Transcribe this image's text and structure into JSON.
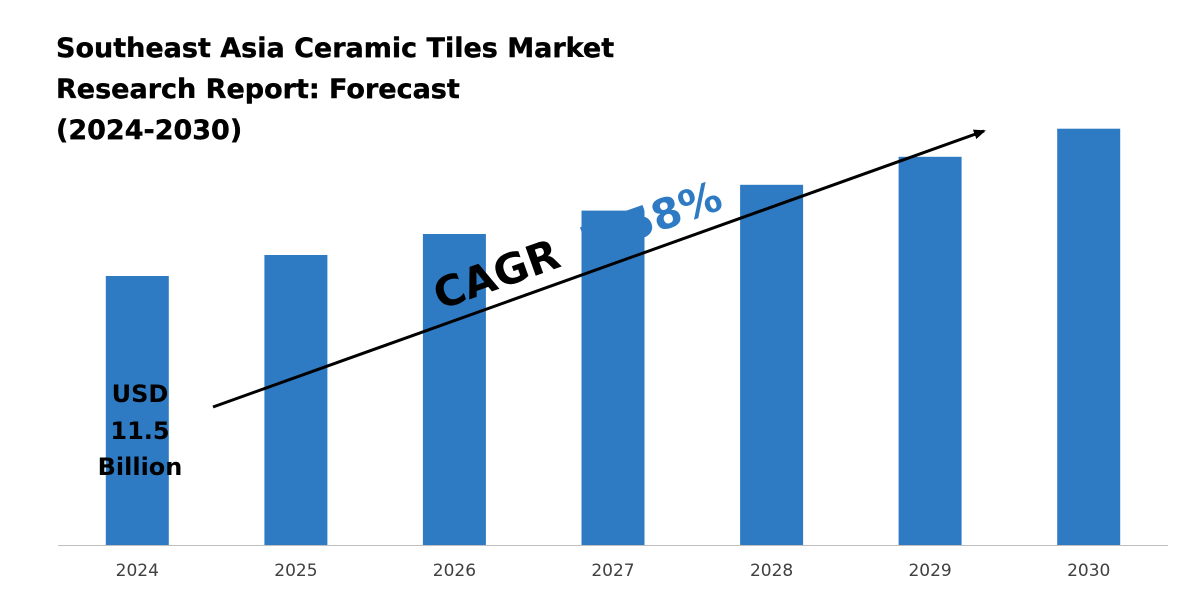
{
  "title_lines": [
    "Southeast Asia Ceramic Tiles Market",
    "Research Report: Forecast",
    "(2024-2030)"
  ],
  "start_value_lines": [
    "USD",
    "11.5",
    "Billion"
  ],
  "cagr": {
    "prefix": "CAGR",
    "value": "7.58%",
    "color": "#2E7BC4"
  },
  "colors": {
    "bar": "#2E7BC4",
    "axis": "#BFBFBF",
    "arrow": "#000000"
  },
  "chart_data": {
    "type": "bar",
    "categories": [
      "2024",
      "2025",
      "2026",
      "2027",
      "2028",
      "2029",
      "2030"
    ],
    "values": [
      11.5,
      12.4,
      13.3,
      14.3,
      15.4,
      16.6,
      17.8
    ],
    "ylim": [
      0,
      18.6
    ],
    "grid": false,
    "legend": "none"
  }
}
